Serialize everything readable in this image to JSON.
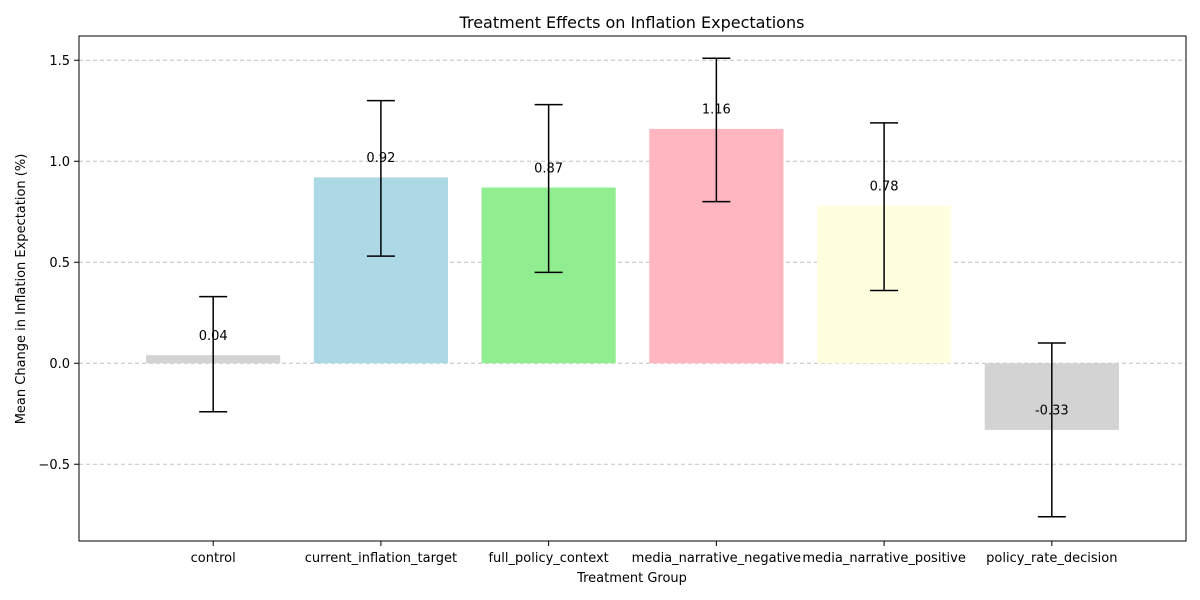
{
  "chart_data": {
    "type": "bar",
    "title": "Treatment Effects on Inflation Expectations",
    "xlabel": "Treatment Group",
    "ylabel": "Mean Change in Inflation Expectation (%)",
    "ylim": [
      -0.88,
      1.62
    ],
    "yticks": [
      -0.5,
      0.0,
      0.5,
      1.0,
      1.5
    ],
    "ytick_labels": [
      "−0.5",
      "0.0",
      "0.5",
      "1.0",
      "1.5"
    ],
    "grid": "y",
    "categories": [
      "control",
      "current_inflation_target",
      "full_policy_context",
      "media_narrative_negative",
      "media_narrative_positive",
      "policy_rate_decision"
    ],
    "values": [
      0.04,
      0.92,
      0.87,
      1.16,
      0.78,
      -0.33
    ],
    "value_labels": [
      "0.04",
      "0.92",
      "0.87",
      "1.16",
      "0.78",
      "-0.33"
    ],
    "error_low": [
      -0.24,
      0.53,
      0.45,
      0.8,
      0.36,
      -0.76
    ],
    "error_high": [
      0.33,
      1.3,
      1.28,
      1.51,
      1.19,
      0.1
    ],
    "colors": [
      "#d3d3d3",
      "#add8e6",
      "#90ee90",
      "#ffb6c1",
      "#ffffe0",
      "#d3d3d3"
    ]
  }
}
